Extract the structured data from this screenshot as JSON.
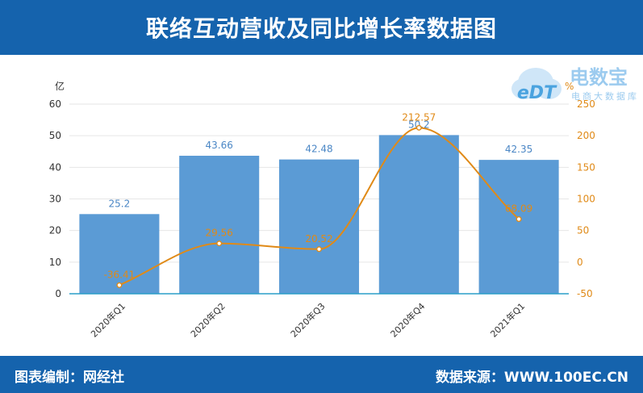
{
  "header": {
    "title": "联络互动营收及同比增长率数据图"
  },
  "footer": {
    "left": "图表编制：网经社",
    "right": "数据来源：WWW.100EC.CN"
  },
  "logo": {
    "name": "电数宝",
    "sub": "电商大数据库",
    "mark": "eDT"
  },
  "colors": {
    "header_bg": "#1563ad",
    "bar": "#5b9bd5",
    "line": "#e08a17",
    "bar_label": "#4a86c5",
    "line_label": "#e08a17"
  },
  "chart_data": {
    "type": "bar",
    "categories": [
      "2020年Q1",
      "2020年Q2",
      "2020年Q3",
      "2020年Q4",
      "2021年Q1"
    ],
    "series": [
      {
        "type": "bar",
        "axis": "left",
        "values": [
          25.2,
          43.66,
          42.48,
          50.2,
          42.35
        ],
        "labels": [
          "25.2",
          "43.66",
          "42.48",
          "50.2",
          "42.35"
        ]
      },
      {
        "type": "line",
        "axis": "right",
        "smooth": true,
        "values": [
          -36.41,
          29.56,
          20.52,
          212.57,
          68.09
        ],
        "labels": [
          "-36.41",
          "29.56",
          "20.52",
          "212.57",
          "68.09"
        ]
      }
    ],
    "ylabel": "亿",
    "y2label": "%",
    "ylim": [
      0,
      60
    ],
    "yticks": [
      0,
      10,
      20,
      30,
      40,
      50,
      60
    ],
    "y2lim": [
      -50,
      250
    ],
    "y2ticks": [
      -50,
      0,
      50,
      100,
      150,
      200,
      250
    ],
    "grid": true
  }
}
